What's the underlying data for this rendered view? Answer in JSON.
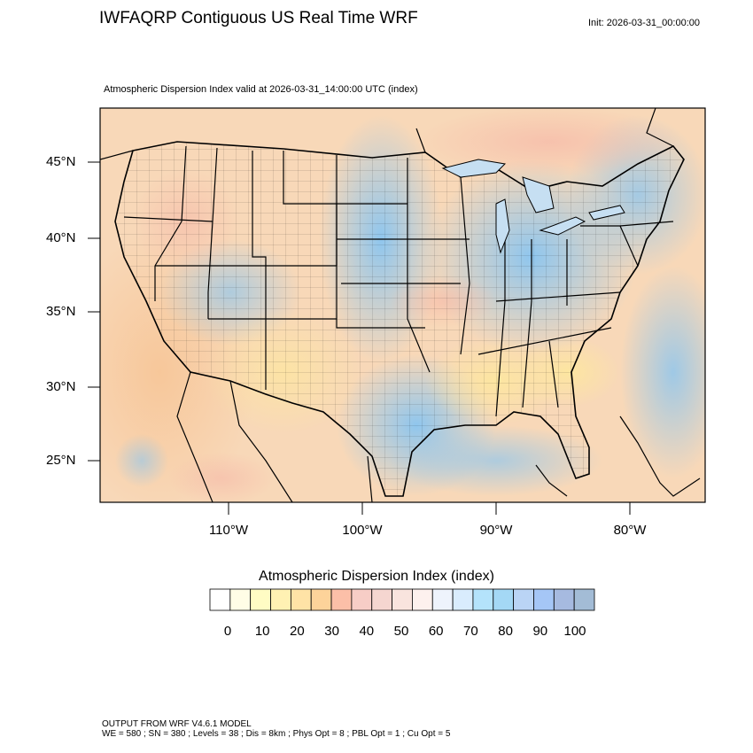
{
  "header": {
    "title": "IWFAQRP Contiguous US Real Time WRF",
    "init": "Init: 2026-03-31_00:00:00"
  },
  "map": {
    "subtitle": "Atmospheric Dispersion Index valid at 2026-03-31_14:00:00 UTC   (index)",
    "lat_labels": [
      "45°N",
      "40°N",
      "35°N",
      "30°N",
      "25°N"
    ],
    "lon_labels": [
      "110°W",
      "100°W",
      "90°W",
      "80°W"
    ]
  },
  "colorbar": {
    "title": "Atmospheric Dispersion Index  (index)",
    "labels": [
      "0",
      "10",
      "20",
      "30",
      "40",
      "50",
      "60",
      "70",
      "80",
      "90",
      "100"
    ],
    "colors": [
      "#ffffff",
      "#fffde6",
      "#fffcc4",
      "#fff1b3",
      "#ffe3a6",
      "#fdd39a",
      "#fcbfa8",
      "#f7cdc6",
      "#f5d6d0",
      "#f9e4de",
      "#fdf1ee",
      "#eef3fc",
      "#d9ecfd",
      "#b4e3fb",
      "#a4d8f5",
      "#bad4f5",
      "#a5c6f6",
      "#a6bae0",
      "#a3bcd6"
    ]
  },
  "footer": {
    "line1": "OUTPUT FROM WRF V4.6.1 MODEL",
    "line2": "WE = 580 ; SN = 380 ; Levels = 38 ; Dis = 8km ; Phys Opt = 8 ; PBL Opt = 1 ; Cu Opt = 5"
  }
}
